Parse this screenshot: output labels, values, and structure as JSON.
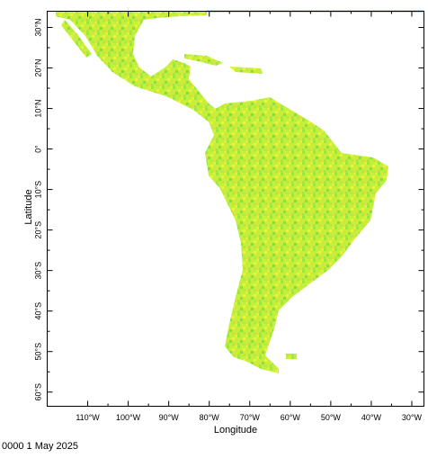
{
  "map": {
    "x_label": "Longitude",
    "y_label": "Latitude",
    "footer": "0000 1 May 2025",
    "xlim": [
      -120,
      -27
    ],
    "ylim": [
      -63.5,
      34
    ],
    "xticks": [
      {
        "value": -110,
        "label": "110°W"
      },
      {
        "value": -100,
        "label": "100°W"
      },
      {
        "value": -90,
        "label": "90°W"
      },
      {
        "value": -80,
        "label": "80°W"
      },
      {
        "value": -70,
        "label": "70°W"
      },
      {
        "value": -60,
        "label": "60°W"
      },
      {
        "value": -50,
        "label": "50°W"
      },
      {
        "value": -40,
        "label": "40°W"
      },
      {
        "value": -30,
        "label": "30°W"
      }
    ],
    "yticks": [
      {
        "value": 30,
        "label": "30°N"
      },
      {
        "value": 20,
        "label": "20°N"
      },
      {
        "value": 10,
        "label": "10°N"
      },
      {
        "value": 0,
        "label": "0°"
      },
      {
        "value": -10,
        "label": "10°S"
      },
      {
        "value": -20,
        "label": "20°S"
      },
      {
        "value": -30,
        "label": "30°S"
      },
      {
        "value": -40,
        "label": "40°S"
      },
      {
        "value": -50,
        "label": "50°S"
      },
      {
        "value": -60,
        "label": "60°S"
      }
    ]
  }
}
